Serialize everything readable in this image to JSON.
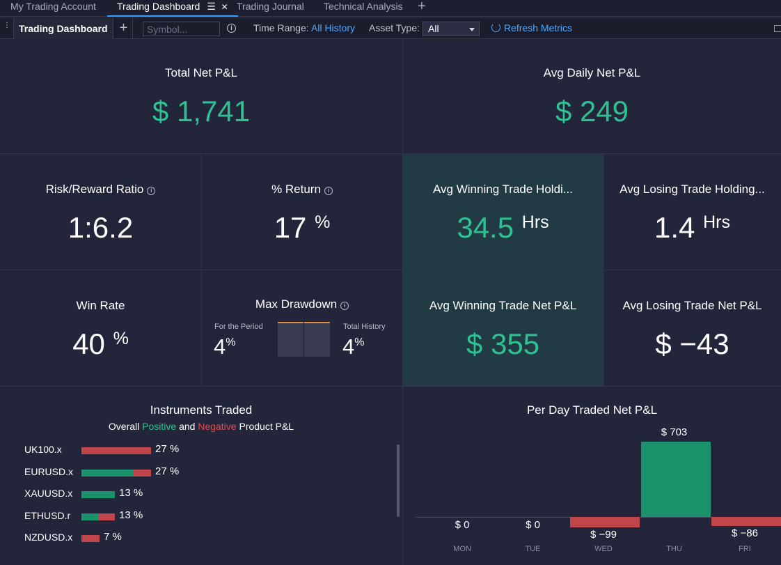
{
  "tabs": [
    {
      "label": "My Trading Account"
    },
    {
      "label": "Trading Dashboard"
    },
    {
      "label": "Trading Journal"
    },
    {
      "label": "Technical Analysis"
    }
  ],
  "tab_icons": {
    "menu": "☰",
    "close": "✕",
    "add": "+"
  },
  "toolbar": {
    "title": "Trading Dashboard",
    "add": "+",
    "symbol_placeholder": "Symbol...",
    "info": "i",
    "time_range_label": "Time Range:",
    "time_range_value": "All History",
    "asset_type_label": "Asset Type:",
    "asset_type_value": "All",
    "refresh_label": "Refresh Metrics"
  },
  "metrics": {
    "total_net_pnl": {
      "title": "Total Net P&L",
      "value": "$ 1,741"
    },
    "avg_daily_net_pnl": {
      "title": "Avg Daily Net P&L",
      "value": "$ 249"
    },
    "risk_reward": {
      "title": "Risk/Reward Ratio",
      "value": "1:6.2"
    },
    "pct_return": {
      "title": "% Return",
      "value": "17",
      "unit": "%"
    },
    "avg_win_hold": {
      "title": "Avg Winning Trade Holdi...",
      "value": "34.5",
      "unit": "Hrs"
    },
    "avg_lose_hold": {
      "title": "Avg Losing Trade Holding...",
      "value": "1.4",
      "unit": "Hrs"
    },
    "win_rate": {
      "title": "Win Rate",
      "value": "40",
      "unit": "%"
    },
    "max_drawdown": {
      "title": "Max Drawdown",
      "period_label": "For the Period",
      "period_value": "4",
      "history_label": "Total History",
      "history_value": "4",
      "unit": "%"
    },
    "avg_win_pnl": {
      "title": "Avg Winning Trade Net P&L",
      "value": "$ 355"
    },
    "avg_lose_pnl": {
      "title": "Avg Losing Trade Net P&L",
      "value": "$ −43"
    }
  },
  "instruments": {
    "title": "Instruments Traded",
    "subtitle_prefix": "Overall",
    "subtitle_positive": "Positive",
    "subtitle_and": "and",
    "subtitle_negative": "Negative",
    "subtitle_suffix": "Product P&L",
    "rows": [
      {
        "name": "UK100.x",
        "pct": "27 %",
        "positive_share": 0.0,
        "share": 27
      },
      {
        "name": "EURUSD.x",
        "pct": "27 %",
        "positive_share": 0.75,
        "share": 27
      },
      {
        "name": "XAUUSD.x",
        "pct": "13 %",
        "positive_share": 1.0,
        "share": 13
      },
      {
        "name": "ETHUSD.r",
        "pct": "13 %",
        "positive_share": 0.5,
        "share": 13
      },
      {
        "name": "NZDUSD.x",
        "pct": "7 %",
        "positive_share": 0.0,
        "share": 7
      }
    ]
  },
  "chart_data": {
    "type": "bar",
    "title": "Per Day Traded Net P&L",
    "categories": [
      "MON",
      "TUE",
      "WED",
      "THU",
      "FRI"
    ],
    "values": [
      0,
      0,
      -99,
      703,
      -86
    ],
    "labels": [
      "$ 0",
      "$ 0",
      "$ −99",
      "$ 703",
      "$ −86"
    ]
  },
  "colors": {
    "positive": "#2ec191",
    "negative": "#c9474d",
    "bar_positive": "#1a936d",
    "bar_negative": "#c0464b",
    "accent": "#4ea8ff",
    "drawdown": "#e58b3c"
  }
}
